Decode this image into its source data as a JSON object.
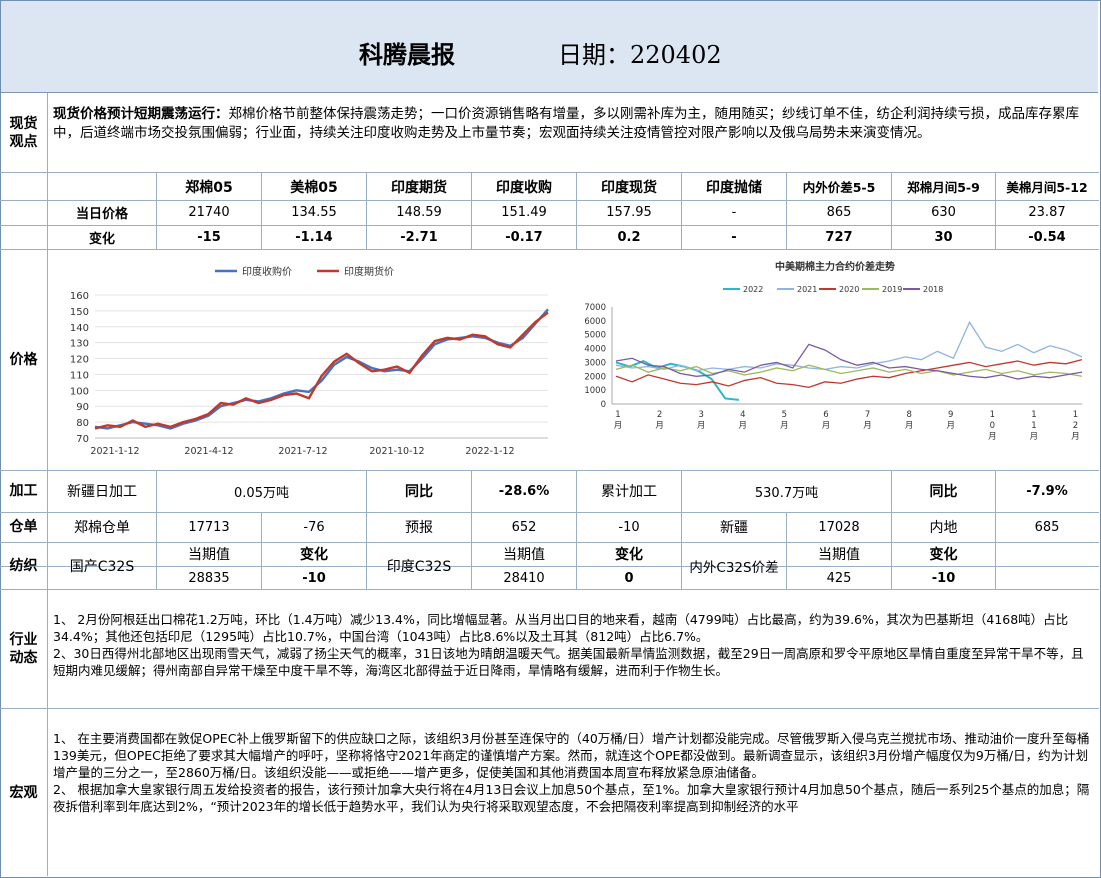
{
  "header": {
    "title": "科腾晨报",
    "date_label": "日期：220402"
  },
  "spot": {
    "label": "现货观点",
    "lead": "现货价格预计短期震荡运行：",
    "text": "郑棉价格节前整体保持震荡走势；一口价资源销售略有增量，多以刚需补库为主，随用随买；纱线订单不佳，纺企利润持续亏损，成品库存累库中，后道终端市场交投氛围偏弱；行业面，持续关注印度收购走势及上市量节奏；宏观面持续关注疫情管控对限产影响以及俄乌局势未来演变情况。"
  },
  "price_table": {
    "columns": [
      "郑棉05",
      "美棉05",
      "印度期货",
      "印度收购",
      "印度现货",
      "印度抛储",
      "内外价差5-5",
      "郑棉月间5-9",
      "美棉月间5-12"
    ],
    "row_today_label": "当日价格",
    "today": [
      "21740",
      "134.55",
      "148.59",
      "151.49",
      "157.95",
      "-",
      "865",
      "630",
      "23.87"
    ],
    "row_change_label": "变化",
    "change": [
      "-15",
      "-1.14",
      "-2.71",
      "-0.17",
      "0.2",
      "-",
      "727",
      "30",
      "-0.54"
    ]
  },
  "price_section": {
    "label": "价格"
  },
  "chart_data": [
    {
      "type": "line",
      "title": "",
      "legend": [
        "印度收购价",
        "印度期货价"
      ],
      "legend_position": "top",
      "x_ticks": [
        "2021-1-12",
        "2021-4-12",
        "2021-7-12",
        "2021-10-12",
        "2022-1-12"
      ],
      "y_ticks": [
        70,
        80,
        90,
        100,
        110,
        120,
        130,
        140,
        150,
        160
      ],
      "ylim": [
        70,
        160
      ],
      "colors": [
        "#4472c4",
        "#c0392b"
      ],
      "series": [
        {
          "name": "印度收购价",
          "values": [
            77,
            76,
            78,
            80,
            79,
            78,
            76,
            79,
            81,
            84,
            90,
            92,
            94,
            93,
            95,
            98,
            100,
            99,
            106,
            116,
            121,
            118,
            114,
            112,
            113,
            112,
            120,
            129,
            132,
            133,
            134,
            133,
            130,
            128,
            133,
            142,
            151
          ]
        },
        {
          "name": "印度期货价",
          "values": [
            76,
            78,
            77,
            81,
            77,
            79,
            77,
            80,
            82,
            85,
            92,
            91,
            95,
            92,
            94,
            97,
            98,
            95,
            109,
            118,
            123,
            117,
            112,
            113,
            115,
            111,
            122,
            131,
            133,
            132,
            135,
            134,
            129,
            127,
            135,
            143,
            149
          ]
        }
      ]
    },
    {
      "type": "line",
      "title": "中美期棉主力合约价差走势",
      "legend": [
        "2022",
        "2021",
        "2020",
        "2019",
        "2018"
      ],
      "legend_position": "top",
      "y_ticks": [
        0,
        1000,
        2000,
        3000,
        4000,
        5000,
        6000,
        7000
      ],
      "ylim": [
        0,
        7000
      ],
      "x_ticks": [
        [
          "1",
          "月"
        ],
        [
          "2",
          "月"
        ],
        [
          "3",
          "月"
        ],
        [
          "4",
          "月"
        ],
        [
          "5",
          "月"
        ],
        [
          "6",
          "月"
        ],
        [
          "7",
          "月"
        ],
        [
          "8",
          "月"
        ],
        [
          "9",
          "月"
        ],
        [
          "1",
          "0",
          "月"
        ],
        [
          "1",
          "1",
          "月"
        ],
        [
          "1",
          "2",
          "月"
        ]
      ],
      "colors": [
        "#2ab7ca",
        "#8fb4e3",
        "#c0392b",
        "#9bbb59",
        "#7a5aa6"
      ],
      "series": [
        {
          "name": "2022",
          "values": [
            3000,
            2700,
            3100,
            2600,
            2900,
            2700,
            2400,
            1800,
            400,
            300
          ]
        },
        {
          "name": "2021",
          "values": [
            2800,
            2600,
            2700,
            2500,
            2800,
            2400,
            2600,
            2500,
            2700,
            2600,
            2900,
            2800,
            2600,
            2500,
            2700,
            2600,
            2900,
            3100,
            3400,
            3200,
            3800,
            3300,
            5900,
            4100,
            3800,
            4300,
            3700,
            4200,
            3900,
            3400
          ]
        },
        {
          "name": "2020",
          "values": [
            2000,
            1600,
            2100,
            1800,
            1500,
            1400,
            1600,
            1300,
            1700,
            1900,
            1500,
            1400,
            1200,
            1600,
            1500,
            1800,
            2000,
            1900,
            2200,
            2400,
            2600,
            2800,
            3000,
            2700,
            2900,
            3100,
            2800,
            3000,
            2900,
            3200
          ]
        },
        {
          "name": "2019",
          "values": [
            2500,
            2800,
            2300,
            2600,
            2400,
            2700,
            2200,
            2400,
            2100,
            2300,
            2600,
            2400,
            2800,
            2500,
            2200,
            2400,
            2600,
            2300,
            2500,
            2200,
            2400,
            2100,
            2300,
            2500,
            2200,
            2400,
            2100,
            2300,
            2200,
            2000
          ]
        },
        {
          "name": "2018",
          "values": [
            3100,
            3300,
            2800,
            2700,
            2200,
            2000,
            2100,
            2500,
            2300,
            2800,
            3000,
            2600,
            4300,
            3900,
            3200,
            2800,
            3000,
            2600,
            2700,
            2500,
            2400,
            2200,
            2000,
            1900,
            2100,
            1800,
            2000,
            1900,
            2100,
            2300
          ]
        }
      ]
    }
  ],
  "processing": {
    "label": "加工",
    "xinjiang_daily_label": "新疆日加工",
    "xinjiang_daily_value": "0.05万吨",
    "yoy_label": "同比",
    "yoy_value": "-28.6%",
    "cumulative_label": "累计加工",
    "cumulative_value": "530.7万吨",
    "yoy2_label": "同比",
    "yoy2_value": "-7.9%"
  },
  "warehouse": {
    "label": "仓单",
    "zz_label": "郑棉仓单",
    "zz_value": "17713",
    "zz_change": "-76",
    "forecast_label": "预报",
    "forecast_value": "652",
    "forecast_change": "-10",
    "xj_label": "新疆",
    "xj_value": "17028",
    "inland_label": "内地",
    "inland_value": "685"
  },
  "spinning": {
    "label": "纺织",
    "domestic_label": "国产C32S",
    "cur_label": "当期值",
    "chg_label": "变化",
    "domestic_value": "28835",
    "domestic_change": "-10",
    "india_label": "印度C32S",
    "india_value": "28410",
    "india_change": "0",
    "spread_label": "内外C32S价差",
    "spread_value": "425",
    "spread_change": "-10"
  },
  "industry": {
    "label": "行业动态",
    "p1": "1、 2月份阿根廷出口棉花1.2万吨，环比（1.4万吨）减少13.4%，同比增幅显著。从当月出口目的地来看，越南（4799吨）占比最高，约为39.6%，其次为巴基斯坦（4168吨）占比34.4%；其他还包括印尼（1295吨）占比10.7%，中国台湾（1043吨）占比8.6%以及土耳其（812吨）占比6.7%。",
    "p2": "2、30日西得州北部地区出现雨雪天气，减弱了扬尘天气的概率，31日该地为晴朗温暖天气。据美国最新旱情监测数据，截至29日一周高原和罗令平原地区旱情自重度至异常干旱不等，且短期内难见缓解；得州南部自异常干燥至中度干旱不等，海湾区北部得益于近日降雨，旱情略有缓解，进而利于作物生长。"
  },
  "macro": {
    "label": "宏观",
    "p1": "1、 在主要消费国都在敦促OPEC补上俄罗斯留下的供应缺口之际，该组织3月份甚至连保守的（40万桶/日）增产计划都没能完成。尽管俄罗斯入侵乌克兰搅扰市场、推动油价一度升至每桶139美元，但OPEC拒绝了要求其大幅增产的呼吁，坚称将恪守2021年商定的谨慎增产方案。然而，就连这个OPE都没做到。最新调查显示，该组织3月份增产幅度仅为9万桶/日，约为计划增产量的三分之一，至2860万桶/日。该组织没能——或拒绝——增产更多，促使美国和其他消费国本周宣布释放紧急原油储备。",
    "p2": "2、 根据加拿大皇家银行周五发给投资者的报告，该行预计加拿大央行将在4月13日会议上加息50个基点，至1%。加拿大皇家银行预计4月加息50个基点，随后一系列25个基点的加息；隔夜拆借利率到年底达到2%，“预计2023年的增长低于趋势水平，我们认为央行将采取观望态度，不会把隔夜利率提高到抑制经济的水平"
  }
}
